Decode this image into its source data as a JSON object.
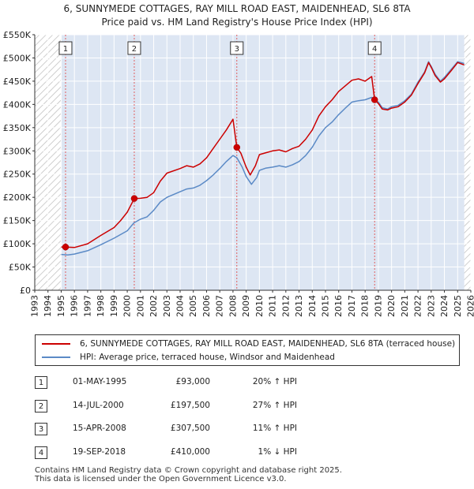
{
  "chart_data": {
    "type": "line",
    "title": "6, SUNNYMEDE COTTAGES, RAY MILL ROAD EAST, MAIDENHEAD, SL6 8TA",
    "subtitle": "Price paid vs. HM Land Registry's House Price Index (HPI)",
    "xlim": [
      1993,
      2026
    ],
    "ylim": [
      0,
      550000
    ],
    "x_ticks": [
      1993,
      1994,
      1995,
      1996,
      1997,
      1998,
      1999,
      2000,
      2001,
      2002,
      2003,
      2004,
      2005,
      2006,
      2007,
      2008,
      2009,
      2010,
      2011,
      2012,
      2013,
      2014,
      2015,
      2016,
      2017,
      2018,
      2019,
      2020,
      2021,
      2022,
      2023,
      2024,
      2025,
      2026
    ],
    "y_ticks": [
      {
        "value": 0,
        "label": "£0"
      },
      {
        "value": 50000,
        "label": "£50K"
      },
      {
        "value": 100000,
        "label": "£100K"
      },
      {
        "value": 150000,
        "label": "£150K"
      },
      {
        "value": 200000,
        "label": "£200K"
      },
      {
        "value": 250000,
        "label": "£250K"
      },
      {
        "value": 300000,
        "label": "£300K"
      },
      {
        "value": 350000,
        "label": "£350K"
      },
      {
        "value": 400000,
        "label": "£400K"
      },
      {
        "value": 450000,
        "label": "£450K"
      },
      {
        "value": 500000,
        "label": "£500K"
      },
      {
        "value": 550000,
        "label": "£550K"
      }
    ],
    "data_range": [
      1995.0,
      2025.5
    ],
    "series": [
      {
        "name": "6, SUNNYMEDE COTTAGES, RAY MILL ROAD EAST, MAIDENHEAD, SL6 8TA (terraced house)",
        "color": "#cc0000",
        "points": [
          [
            1995.0,
            93000
          ],
          [
            1995.33,
            93000
          ],
          [
            1996.0,
            92000
          ],
          [
            1997.0,
            100000
          ],
          [
            1998.0,
            118000
          ],
          [
            1999.0,
            135000
          ],
          [
            1999.5,
            150000
          ],
          [
            2000.0,
            168000
          ],
          [
            2000.53,
            197500
          ],
          [
            2001.0,
            198000
          ],
          [
            2001.5,
            200000
          ],
          [
            2002.0,
            210000
          ],
          [
            2002.5,
            235000
          ],
          [
            2003.0,
            252000
          ],
          [
            2004.0,
            262000
          ],
          [
            2004.5,
            268000
          ],
          [
            2005.0,
            265000
          ],
          [
            2005.5,
            272000
          ],
          [
            2006.0,
            285000
          ],
          [
            2006.5,
            305000
          ],
          [
            2007.0,
            325000
          ],
          [
            2007.5,
            345000
          ],
          [
            2008.0,
            368000
          ],
          [
            2008.29,
            307500
          ],
          [
            2008.6,
            295000
          ],
          [
            2009.0,
            265000
          ],
          [
            2009.3,
            248000
          ],
          [
            2009.7,
            268000
          ],
          [
            2010.0,
            292000
          ],
          [
            2010.5,
            296000
          ],
          [
            2011.0,
            300000
          ],
          [
            2011.5,
            302000
          ],
          [
            2012.0,
            298000
          ],
          [
            2012.5,
            305000
          ],
          [
            2013.0,
            310000
          ],
          [
            2013.5,
            325000
          ],
          [
            2014.0,
            345000
          ],
          [
            2014.5,
            375000
          ],
          [
            2015.0,
            395000
          ],
          [
            2015.5,
            410000
          ],
          [
            2016.0,
            428000
          ],
          [
            2016.5,
            440000
          ],
          [
            2017.0,
            452000
          ],
          [
            2017.5,
            455000
          ],
          [
            2018.0,
            450000
          ],
          [
            2018.5,
            460000
          ],
          [
            2018.72,
            410000
          ],
          [
            2019.0,
            402000
          ],
          [
            2019.3,
            390000
          ],
          [
            2019.7,
            388000
          ],
          [
            2020.0,
            392000
          ],
          [
            2020.5,
            395000
          ],
          [
            2021.0,
            405000
          ],
          [
            2021.5,
            420000
          ],
          [
            2022.0,
            445000
          ],
          [
            2022.5,
            468000
          ],
          [
            2022.8,
            490000
          ],
          [
            2023.0,
            480000
          ],
          [
            2023.3,
            462000
          ],
          [
            2023.7,
            448000
          ],
          [
            2024.0,
            455000
          ],
          [
            2024.5,
            472000
          ],
          [
            2025.0,
            490000
          ],
          [
            2025.5,
            485000
          ]
        ]
      },
      {
        "name": "HPI: Average price, terraced house, Windsor and Maidenhead",
        "color": "#5b8ac6",
        "points": [
          [
            1995.0,
            77000
          ],
          [
            1995.5,
            76000
          ],
          [
            1996.0,
            78000
          ],
          [
            1997.0,
            85000
          ],
          [
            1998.0,
            98000
          ],
          [
            1999.0,
            112000
          ],
          [
            2000.0,
            128000
          ],
          [
            2000.5,
            145000
          ],
          [
            2001.0,
            153000
          ],
          [
            2001.5,
            158000
          ],
          [
            2002.0,
            172000
          ],
          [
            2002.5,
            190000
          ],
          [
            2003.0,
            200000
          ],
          [
            2004.0,
            212000
          ],
          [
            2004.5,
            218000
          ],
          [
            2005.0,
            220000
          ],
          [
            2005.5,
            226000
          ],
          [
            2006.0,
            236000
          ],
          [
            2006.5,
            248000
          ],
          [
            2007.0,
            262000
          ],
          [
            2007.5,
            277000
          ],
          [
            2008.0,
            290000
          ],
          [
            2008.3,
            285000
          ],
          [
            2008.7,
            265000
          ],
          [
            2009.0,
            245000
          ],
          [
            2009.4,
            228000
          ],
          [
            2009.8,
            243000
          ],
          [
            2010.0,
            258000
          ],
          [
            2010.5,
            263000
          ],
          [
            2011.0,
            265000
          ],
          [
            2011.5,
            268000
          ],
          [
            2012.0,
            265000
          ],
          [
            2012.5,
            270000
          ],
          [
            2013.0,
            277000
          ],
          [
            2013.5,
            290000
          ],
          [
            2014.0,
            308000
          ],
          [
            2014.5,
            332000
          ],
          [
            2015.0,
            350000
          ],
          [
            2015.5,
            362000
          ],
          [
            2016.0,
            378000
          ],
          [
            2016.5,
            392000
          ],
          [
            2017.0,
            405000
          ],
          [
            2017.5,
            408000
          ],
          [
            2018.0,
            410000
          ],
          [
            2018.5,
            415000
          ],
          [
            2018.72,
            410000
          ],
          [
            2019.0,
            405000
          ],
          [
            2019.3,
            393000
          ],
          [
            2019.7,
            390000
          ],
          [
            2020.0,
            395000
          ],
          [
            2020.5,
            398000
          ],
          [
            2021.0,
            408000
          ],
          [
            2021.5,
            422000
          ],
          [
            2022.0,
            448000
          ],
          [
            2022.5,
            470000
          ],
          [
            2022.8,
            492000
          ],
          [
            2023.0,
            482000
          ],
          [
            2023.3,
            465000
          ],
          [
            2023.7,
            450000
          ],
          [
            2024.0,
            458000
          ],
          [
            2024.5,
            475000
          ],
          [
            2025.0,
            492000
          ],
          [
            2025.5,
            488000
          ]
        ]
      }
    ],
    "sales": [
      {
        "label": "1",
        "x": 1995.33,
        "price": 93000,
        "date": "01-MAY-1995",
        "price_text": "£93,000",
        "hpi_text": "20% ↑ HPI"
      },
      {
        "label": "2",
        "x": 2000.53,
        "price": 197500,
        "date": "14-JUL-2000",
        "price_text": "£197,500",
        "hpi_text": "27% ↑ HPI"
      },
      {
        "label": "3",
        "x": 2008.29,
        "price": 307500,
        "date": "15-APR-2008",
        "price_text": "£307,500",
        "hpi_text": "11% ↑ HPI"
      },
      {
        "label": "4",
        "x": 2018.72,
        "price": 410000,
        "date": "19-SEP-2018",
        "price_text": "£410,000",
        "hpi_text": "1% ↓ HPI"
      }
    ],
    "colors": {
      "plot_bg": "#dde6f3",
      "hatch": "#b8b8b8",
      "grid": "#ffffff",
      "vline": "#e06060"
    }
  },
  "footer": {
    "line1": "Contains HM Land Registry data © Crown copyright and database right 2025.",
    "line2": "This data is licensed under the Open Government Licence v3.0."
  }
}
